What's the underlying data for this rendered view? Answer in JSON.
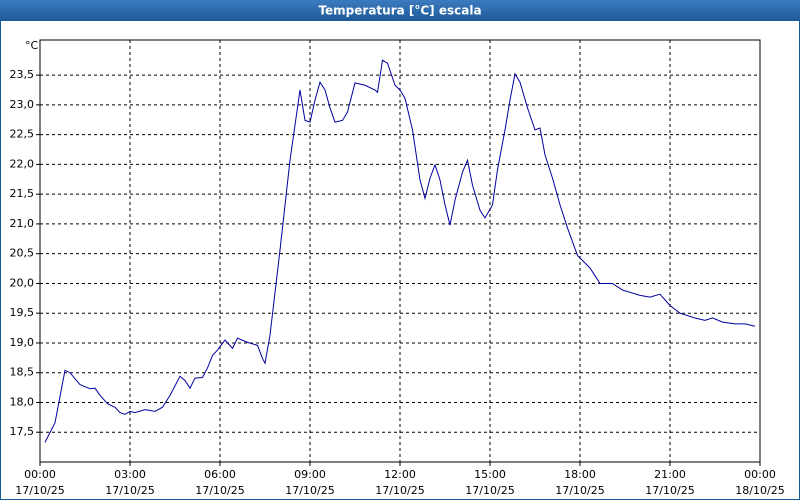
{
  "chart_data": {
    "type": "line",
    "title": "Temperatura [°C] escala",
    "y_label": "°C",
    "grid": true,
    "x": [
      "2025-10-17T00:10",
      "2025-10-17T00:30",
      "2025-10-17T00:50",
      "2025-10-17T01:00",
      "2025-10-17T01:20",
      "2025-10-17T01:40",
      "2025-10-17T01:50",
      "2025-10-17T02:00",
      "2025-10-17T02:15",
      "2025-10-17T02:30",
      "2025-10-17T02:40",
      "2025-10-17T02:50",
      "2025-10-17T03:00",
      "2025-10-17T03:10",
      "2025-10-17T03:30",
      "2025-10-17T03:50",
      "2025-10-17T04:05",
      "2025-10-17T04:20",
      "2025-10-17T04:40",
      "2025-10-17T04:50",
      "2025-10-17T05:00",
      "2025-10-17T05:10",
      "2025-10-17T05:25",
      "2025-10-17T05:35",
      "2025-10-17T05:45",
      "2025-10-17T05:55",
      "2025-10-17T06:10",
      "2025-10-17T06:25",
      "2025-10-17T06:35",
      "2025-10-17T06:55",
      "2025-10-17T07:15",
      "2025-10-17T07:25",
      "2025-10-17T07:30",
      "2025-10-17T07:40",
      "2025-10-17T08:00",
      "2025-10-17T08:20",
      "2025-10-17T08:30",
      "2025-10-17T08:40",
      "2025-10-17T08:50",
      "2025-10-17T09:00",
      "2025-10-17T09:10",
      "2025-10-17T09:20",
      "2025-10-17T09:30",
      "2025-10-17T09:40",
      "2025-10-17T09:50",
      "2025-10-17T10:05",
      "2025-10-17T10:15",
      "2025-10-17T10:30",
      "2025-10-17T10:50",
      "2025-10-17T11:10",
      "2025-10-17T11:15",
      "2025-10-17T11:25",
      "2025-10-17T11:35",
      "2025-10-17T11:50",
      "2025-10-17T12:00",
      "2025-10-17T12:10",
      "2025-10-17T12:25",
      "2025-10-17T12:40",
      "2025-10-17T12:50",
      "2025-10-17T13:00",
      "2025-10-17T13:10",
      "2025-10-17T13:20",
      "2025-10-17T13:30",
      "2025-10-17T13:40",
      "2025-10-17T13:50",
      "2025-10-17T14:05",
      "2025-10-17T14:15",
      "2025-10-17T14:25",
      "2025-10-17T14:40",
      "2025-10-17T14:50",
      "2025-10-17T15:05",
      "2025-10-17T15:15",
      "2025-10-17T15:30",
      "2025-10-17T15:40",
      "2025-10-17T15:50",
      "2025-10-17T16:00",
      "2025-10-17T16:15",
      "2025-10-17T16:30",
      "2025-10-17T16:40",
      "2025-10-17T16:50",
      "2025-10-17T17:05",
      "2025-10-17T17:20",
      "2025-10-17T17:35",
      "2025-10-17T17:55",
      "2025-10-17T18:20",
      "2025-10-17T18:40",
      "2025-10-17T19:05",
      "2025-10-17T19:25",
      "2025-10-17T20:00",
      "2025-10-17T20:20",
      "2025-10-17T20:40",
      "2025-10-17T21:00",
      "2025-10-17T21:20",
      "2025-10-17T21:50",
      "2025-10-17T22:10",
      "2025-10-17T22:25",
      "2025-10-17T22:45",
      "2025-10-17T23:10",
      "2025-10-17T23:30",
      "2025-10-17T23:50"
    ],
    "series": [
      {
        "color": "#0000a0",
        "values": [
          17.33,
          17.66,
          18.54,
          18.5,
          18.3,
          18.23,
          18.24,
          18.12,
          17.98,
          17.92,
          17.83,
          17.8,
          17.85,
          17.83,
          17.88,
          17.85,
          17.92,
          18.12,
          18.44,
          18.37,
          18.24,
          18.41,
          18.42,
          18.58,
          18.79,
          18.88,
          19.05,
          18.91,
          19.08,
          19.01,
          18.96,
          18.74,
          18.66,
          19.13,
          20.56,
          22.07,
          22.66,
          23.25,
          22.74,
          22.71,
          23.08,
          23.38,
          23.25,
          22.95,
          22.71,
          22.74,
          22.88,
          23.37,
          23.33,
          23.25,
          23.21,
          23.75,
          23.7,
          23.33,
          23.25,
          23.11,
          22.58,
          21.74,
          21.43,
          21.77,
          21.99,
          21.74,
          21.32,
          20.98,
          21.4,
          21.87,
          22.07,
          21.65,
          21.23,
          21.1,
          21.32,
          21.91,
          22.58,
          23.08,
          23.52,
          23.38,
          22.95,
          22.58,
          22.61,
          22.16,
          21.77,
          21.32,
          20.93,
          20.47,
          20.26,
          20.0,
          20.0,
          19.89,
          19.8,
          19.77,
          19.82,
          19.63,
          19.5,
          19.42,
          19.38,
          19.42,
          19.35,
          19.32,
          19.32,
          19.28
        ]
      }
    ],
    "xlim": [
      "2025-10-17T00:00",
      "2025-10-18T00:00"
    ],
    "xticks": [
      {
        "value": "2025-10-17T00:00",
        "label": [
          "00:00",
          "17/10/25"
        ]
      },
      {
        "value": "2025-10-17T03:00",
        "label": [
          "03:00",
          "17/10/25"
        ]
      },
      {
        "value": "2025-10-17T06:00",
        "label": [
          "06:00",
          "17/10/25"
        ]
      },
      {
        "value": "2025-10-17T09:00",
        "label": [
          "09:00",
          "17/10/25"
        ]
      },
      {
        "value": "2025-10-17T12:00",
        "label": [
          "12:00",
          "17/10/25"
        ]
      },
      {
        "value": "2025-10-17T15:00",
        "label": [
          "15:00",
          "17/10/25"
        ]
      },
      {
        "value": "2025-10-17T18:00",
        "label": [
          "18:00",
          "17/10/25"
        ]
      },
      {
        "value": "2025-10-17T21:00",
        "label": [
          "21:00",
          "17/10/25"
        ]
      },
      {
        "value": "2025-10-18T00:00",
        "label": [
          "00:00",
          "18/10/25"
        ]
      }
    ],
    "ylim": [
      17.0,
      24.09
    ],
    "yticks": [
      {
        "value": 17.5,
        "label": "17,5"
      },
      {
        "value": 18.0,
        "label": "18,0"
      },
      {
        "value": 18.5,
        "label": "18,5"
      },
      {
        "value": 19.0,
        "label": "19,0"
      },
      {
        "value": 19.5,
        "label": "19,5"
      },
      {
        "value": 20.0,
        "label": "20,0"
      },
      {
        "value": 20.5,
        "label": "20,5"
      },
      {
        "value": 21.0,
        "label": "21,0"
      },
      {
        "value": 21.5,
        "label": "21,5"
      },
      {
        "value": 22.0,
        "label": "22,0"
      },
      {
        "value": 22.5,
        "label": "22,5"
      },
      {
        "value": 23.0,
        "label": "23,0"
      },
      {
        "value": 23.5,
        "label": "23,5"
      }
    ]
  }
}
